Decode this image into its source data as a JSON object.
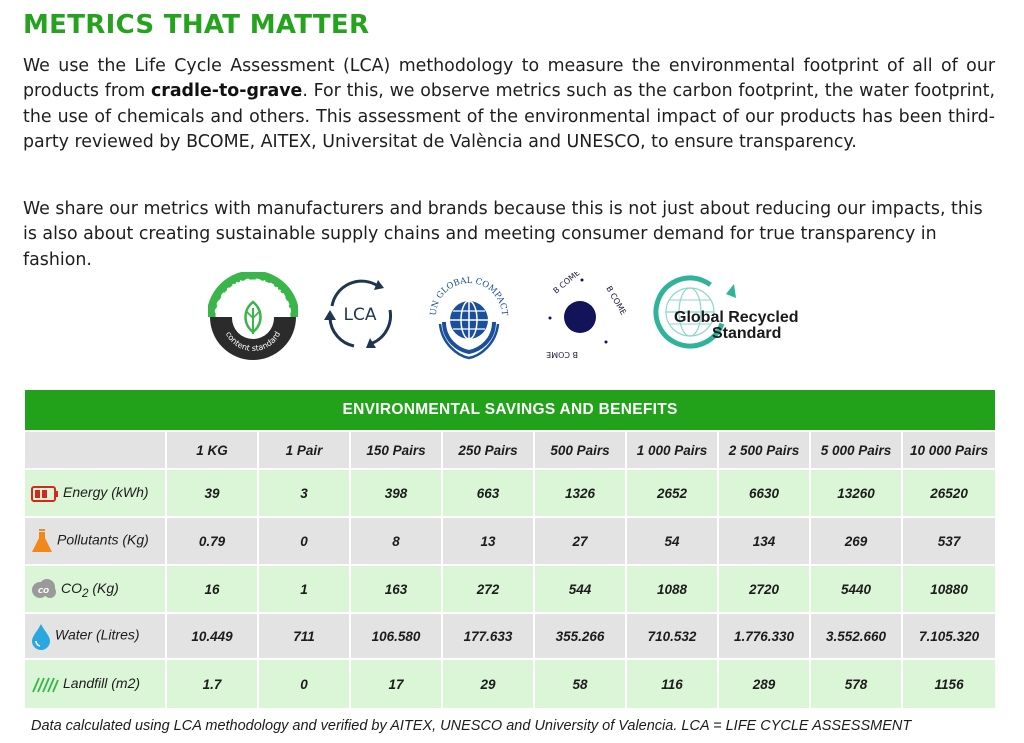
{
  "title": "METRICS THAT MATTER",
  "intro": {
    "p1_before": "We use the Life Cycle Assessment (LCA) methodology to measure the environmental footprint of all of our products from ",
    "p1_bold": "cradle-to-grave",
    "p1_after": ". For this, we observe metrics such as the carbon footprint, the water footprint, the use of chemicals and others. This assessment of the environmental impact of our products has been third-party reviewed by BCOME, AITEX, Universitat de València and UNESCO, to ensure transparency.",
    "p2": "We share our metrics with manufacturers and brands because this is not just about reducing our impacts, this is also about creating sustainable supply chains and meeting consumer demand for true transparency in fashion."
  },
  "logos": {
    "ocs_top": "ORGANIC BLENDED",
    "ocs_bottom": "content standard",
    "lca": "LCA",
    "ungc": "UN GLOBAL COMPACT",
    "bcome": "B COME",
    "grs_line1": "Global Recycled",
    "grs_line2": "Standard"
  },
  "table": {
    "caption": "ENVIRONMENTAL SAVINGS AND BENEFITS",
    "columns": [
      "1 KG",
      "1 Pair",
      "150 Pairs",
      "250 Pairs",
      "500 Pairs",
      "1 000 Pairs",
      "2 500 Pairs",
      "5 000 Pairs",
      "10 000 Pairs"
    ],
    "rows": [
      {
        "label": "Energy (kWh)",
        "icon": "battery-icon",
        "values": [
          "39",
          "3",
          "398",
          "663",
          "1326",
          "2652",
          "6630",
          "13260",
          "26520"
        ]
      },
      {
        "label": "Pollutants (Kg)",
        "icon": "flask-icon",
        "values": [
          "0.79",
          "0",
          "8",
          "13",
          "27",
          "54",
          "134",
          "269",
          "537"
        ]
      },
      {
        "label_main": "CO",
        "label_sub": "2",
        "label_rest": " (Kg)",
        "icon": "co2-cloud-icon",
        "values": [
          "16",
          "1",
          "163",
          "272",
          "544",
          "1088",
          "2720",
          "5440",
          "10880"
        ]
      },
      {
        "label": "Water (Litres)",
        "icon": "water-drop-icon",
        "values": [
          "10.449",
          "711",
          "106.580",
          "177.633",
          "355.266",
          "710.532",
          "1.776.330",
          "3.552.660",
          "7.105.320"
        ]
      },
      {
        "label": "Landfill (m2)",
        "icon": "landfill-stripes-icon",
        "values": [
          "1.7",
          "0",
          "17",
          "29",
          "58",
          "116",
          "289",
          "578",
          "1156"
        ]
      }
    ]
  },
  "footnote": "Data calculated using LCA methodology and verified by AITEX, UNESCO and University of Valencia. LCA = LIFE CYCLE ASSESSMENT",
  "colors": {
    "brand_green": "#26a31e",
    "row_green": "#dbf6d7",
    "row_grey": "#e3e3e3"
  }
}
